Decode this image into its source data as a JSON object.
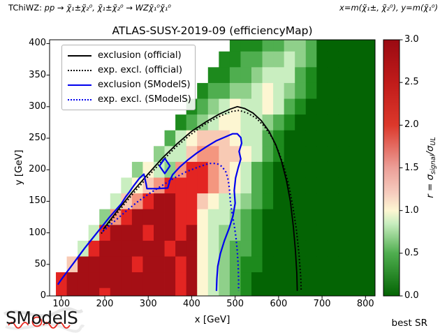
{
  "title": "ATLAS-SUSY-2019-09 (efficiencyMap)",
  "header": {
    "process_prefix": "TChiWZ: ",
    "process_math": "pp → χ̃₁±χ̃₂⁰, χ̃₁±χ̃₂⁰ → WZχ̃₁⁰χ̃₁⁰",
    "axes_note": "x=m(χ̃₁±, χ̃₂⁰), y=m(χ̃₁⁰)"
  },
  "legend": {
    "items": [
      {
        "label": "exclusion (official)",
        "color": "#000000",
        "line": "solid"
      },
      {
        "label": "exp. excl. (official)",
        "color": "#000000",
        "line": "dotted"
      },
      {
        "label": "exclusion (SModelS)",
        "color": "#0000ee",
        "line": "solid"
      },
      {
        "label": "exp. excl. (SModelS)",
        "color": "#0000ee",
        "line": "dotted"
      }
    ]
  },
  "footer": {
    "best_sr": "best SR",
    "logo_parts": [
      "SM",
      "o",
      "delS"
    ]
  },
  "chart_data": {
    "type": "heatmap",
    "title": "ATLAS-SUSY-2019-09 (efficiencyMap)",
    "xlabel": "x [GeV]",
    "ylabel": "y [GeV]",
    "xlim": [
      73,
      822
    ],
    "ylim": [
      0,
      406
    ],
    "xticks": [
      100,
      200,
      300,
      400,
      500,
      600,
      700,
      800
    ],
    "yticks": [
      0,
      50,
      100,
      150,
      200,
      250,
      300,
      350,
      400
    ],
    "grid_x_start": 100,
    "grid_x_step": 25,
    "grid_y_top": 400,
    "grid_y_step": 25,
    "cell_gev": 25,
    "palette": {
      "D": "#a50f15",
      "R": "#e32522",
      "r": "#f4967f",
      "p": "#f8cab4",
      "w": "#fdf6d2",
      "g": "#c9eec0",
      "G": "#8fd08a",
      "m": "#4fae4f",
      "F": "#1d8a1d",
      "E": "#046404"
    },
    "palette_r_values": {
      "D": 3.0,
      "R": 2.3,
      "r": 1.8,
      "p": 1.5,
      "w": 1.0,
      "g": 0.8,
      "G": 0.55,
      "m": 0.35,
      "F": 0.18,
      "E": 0.05
    },
    "grid": [
      "................FFFmmGGmEEEEE",
      "...............FFmmGGgGmEEEEE",
      "..............FFmmGgggmFEEEEE",
      ".............FmmGGgwgGmFEEEEE",
      "............FmGgwggwgmFEEEEEE",
      "...........FmGgwwggGmFEEEEEEE",
      "..........mgwpppwggmFEEEEEEEE",
      ".........GggprrppwgmFEEEEEEEE",
      ".......GwgGrRRrpwgmFEEEEEEEEE",
      "......gwprRRRRrpwgmFEEEEEEEEE",
      ".....gprRDDRRpwggGmFEEEEEEEEE",
      "....GrRDDDDRRwggGmFEEEEEEEEEE",
      "...gRDDDRDDRDwgGGmFEEEEEEEEEE",
      "..gRDDDDDDRDDwgGmmFEEEEEEEEEE",
      ".pDDDDDRDDDRDwgGmFFEEEEEEEEEE",
      "RDDDDDDDDDDRDwgGmFEEEEEEEEEEE",
      "RDDDRDDDDDDRDwgGmFEEEEEEEEEEE"
    ],
    "colorbar": {
      "label_main_1": "r = σ",
      "label_sub_1": "signal",
      "label_main_2": "/σ",
      "label_sub_2": "UL",
      "min": 0,
      "max": 3,
      "ticks": [
        {
          "v": 0,
          "label": "0.0"
        },
        {
          "v": 0.5,
          "label": "0.5"
        },
        {
          "v": 1,
          "label": "1.0"
        },
        {
          "v": 1.5,
          "label": "1.5"
        },
        {
          "v": 2,
          "label": "2.0"
        },
        {
          "v": 2.5,
          "label": "2.5"
        },
        {
          "v": 3,
          "label": "3.0"
        }
      ],
      "gradient": [
        {
          "v": 0,
          "c": "#036403"
        },
        {
          "v": 0.5,
          "c": "#4fae4f"
        },
        {
          "v": 0.85,
          "c": "#c9eec0"
        },
        {
          "v": 1.0,
          "c": "#fdf6d2"
        },
        {
          "v": 1.2,
          "c": "#f6cdbf"
        },
        {
          "v": 1.5,
          "c": "#ec9f98"
        },
        {
          "v": 2.0,
          "c": "#dc382b"
        },
        {
          "v": 2.5,
          "c": "#c01b1a"
        },
        {
          "v": 3.0,
          "c": "#9a0a12"
        }
      ]
    },
    "curves": {
      "exclusion_official": [
        [
          197,
          106
        ],
        [
          230,
          136
        ],
        [
          264,
          165
        ],
        [
          298,
          192
        ],
        [
          332,
          218
        ],
        [
          366,
          241
        ],
        [
          400,
          261
        ],
        [
          433,
          276
        ],
        [
          463,
          288
        ],
        [
          488,
          296
        ],
        [
          505,
          300
        ],
        [
          522,
          297
        ],
        [
          541,
          290
        ],
        [
          560,
          278
        ],
        [
          578,
          261
        ],
        [
          594,
          239
        ],
        [
          607,
          213
        ],
        [
          618,
          183
        ],
        [
          627,
          150
        ],
        [
          634,
          110
        ],
        [
          639,
          70
        ],
        [
          642,
          35
        ],
        [
          643,
          8
        ]
      ],
      "exp_excl_official": [
        [
          192,
          99
        ],
        [
          226,
          129
        ],
        [
          260,
          158
        ],
        [
          294,
          185
        ],
        [
          328,
          211
        ],
        [
          362,
          235
        ],
        [
          396,
          255
        ],
        [
          430,
          272
        ],
        [
          462,
          284
        ],
        [
          489,
          292
        ],
        [
          509,
          294
        ],
        [
          528,
          290
        ],
        [
          548,
          282
        ],
        [
          567,
          269
        ],
        [
          585,
          251
        ],
        [
          600,
          229
        ],
        [
          613,
          203
        ],
        [
          624,
          174
        ],
        [
          633,
          141
        ],
        [
          641,
          105
        ],
        [
          647,
          66
        ],
        [
          651,
          30
        ],
        [
          652,
          8
        ]
      ],
      "exclusion_smodels": [
        [
          92,
          18
        ],
        [
          100,
          26
        ],
        [
          126,
          50
        ],
        [
          154,
          76
        ],
        [
          182,
          100
        ],
        [
          210,
          124
        ],
        [
          238,
          146
        ],
        [
          248,
          157
        ],
        [
          257,
          165
        ],
        [
          267,
          175
        ],
        [
          279,
          186
        ],
        [
          290,
          193
        ],
        [
          295,
          178
        ],
        [
          297,
          170
        ],
        [
          320,
          170
        ],
        [
          345,
          171
        ],
        [
          350,
          183
        ],
        [
          356,
          192
        ],
        [
          372,
          204
        ],
        [
          392,
          216
        ],
        [
          413,
          227
        ],
        [
          435,
          237
        ],
        [
          457,
          246
        ],
        [
          477,
          252
        ],
        [
          494,
          257
        ],
        [
          505,
          257
        ],
        [
          513,
          251
        ],
        [
          515,
          242
        ],
        [
          509,
          229
        ],
        [
          513,
          217
        ],
        [
          507,
          203
        ],
        [
          501,
          187
        ],
        [
          498,
          167
        ],
        [
          500,
          147
        ],
        [
          495,
          127
        ],
        [
          486,
          107
        ],
        [
          475,
          87
        ],
        [
          466,
          67
        ],
        [
          460,
          47
        ],
        [
          458,
          27
        ],
        [
          457,
          8
        ]
      ],
      "exclusion_smodels_island": [
        [
          338,
          218
        ],
        [
          350,
          206
        ],
        [
          338,
          194
        ],
        [
          326,
          206
        ],
        [
          338,
          218
        ]
      ],
      "exp_excl_smodels": [
        [
          195,
          102
        ],
        [
          222,
          118
        ],
        [
          250,
          135
        ],
        [
          277,
          150
        ],
        [
          304,
          163
        ],
        [
          332,
          175
        ],
        [
          360,
          187
        ],
        [
          388,
          197
        ],
        [
          414,
          204
        ],
        [
          440,
          210
        ],
        [
          458,
          210
        ],
        [
          470,
          205
        ],
        [
          479,
          196
        ],
        [
          484,
          184
        ],
        [
          487,
          168
        ],
        [
          489,
          150
        ],
        [
          493,
          131
        ],
        [
          498,
          112
        ],
        [
          502,
          92
        ],
        [
          505,
          70
        ],
        [
          507,
          48
        ],
        [
          508,
          26
        ],
        [
          508,
          8
        ]
      ]
    }
  }
}
